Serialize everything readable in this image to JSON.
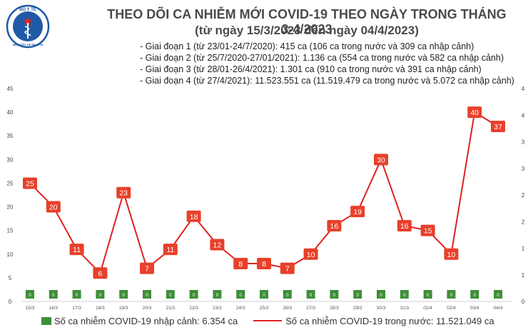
{
  "title": "THEO DÕI CA NHIỄM MỚI COVID-19 THEO NGÀY TRONG THÁNG 3-4/2023",
  "subtitle": "(từ ngày 15/3/2023 đến ngày 04/4/2023)",
  "logo": {
    "top_text": "BỘ Y TẾ",
    "bottom_text": "MINISTRY OF HEALTH"
  },
  "notes": [
    "- Giai đoạn 1 (từ 23/01-24/7/2020): 415 ca (106 ca trong nước và 309 ca nhập cảnh)",
    "- Giai đoạn 2 (từ 25/7/2020-27/01/2021): 1.136 ca (554 ca trong nước và 582 ca nhập cảnh)",
    "- Giai đoạn 3 (từ 28/01-26/4/2021): 1.301 ca (910 ca trong nước và 391 ca nhập cảnh)",
    "- Giai đoạn 4 (từ 27/4/2021): 11.523.551 ca (11.519.479 ca trong nước và 5.072 ca nhập cảnh)"
  ],
  "legend": {
    "imported": "Số ca nhiễm COVID-19 nhập cảnh: 6.354 ca",
    "domestic": "Số ca nhiễm COVID-19 trong nước: 11.521.049 ca"
  },
  "colors": {
    "line": "#e02020",
    "label_bg": "#e8402a",
    "bar": "#3f8f3a",
    "logo": "#1f5aa6"
  },
  "chart_data": {
    "type": "bar+line",
    "categories": [
      "15/3",
      "16/3",
      "17/3",
      "18/3",
      "19/3",
      "20/3",
      "21/3",
      "22/3",
      "23/3",
      "24/3",
      "25/3",
      "26/3",
      "27/3",
      "28/3",
      "29/3",
      "30/3",
      "31/3",
      "01/4",
      "02/4",
      "03/4",
      "04/4"
    ],
    "series": [
      {
        "name": "Số ca nhiễm COVID-19 nhập cảnh",
        "type": "bar",
        "values": [
          0,
          0,
          0,
          0,
          0,
          0,
          0,
          0,
          0,
          0,
          0,
          0,
          0,
          0,
          0,
          0,
          0,
          0,
          0,
          0,
          0
        ],
        "labels": [
          "0",
          "0",
          "0",
          "0",
          "0",
          "0",
          "0",
          "0",
          "0",
          "0",
          "0",
          "0",
          "0",
          "0",
          "0",
          "0",
          "0",
          "0",
          "0",
          "0",
          "0"
        ]
      },
      {
        "name": "Số ca nhiễm COVID-19 trong nước",
        "type": "line",
        "values": [
          25,
          20,
          11,
          6,
          23,
          7,
          11,
          18,
          12,
          8,
          8,
          7,
          10,
          16,
          19,
          30,
          16,
          15,
          10,
          40,
          37
        ],
        "labels": [
          "25",
          "20",
          "11",
          "6",
          "23",
          "7",
          "11",
          "18",
          "12",
          "8",
          "8",
          "7",
          "10",
          "16",
          "19",
          "30",
          "16",
          "15",
          "10",
          "40",
          "37"
        ]
      }
    ],
    "y_left": {
      "min": 0,
      "max": 45,
      "ticks": [
        "0",
        "5",
        "10",
        "15",
        "20",
        "25",
        "30",
        "35",
        "40",
        "45"
      ]
    },
    "y_right": {
      "min": 0,
      "max": 4,
      "ticks": [
        "0",
        "1",
        "1",
        "2",
        "2",
        "3",
        "3",
        "4",
        "4"
      ]
    },
    "grid": false,
    "legend_position": "bottom"
  }
}
